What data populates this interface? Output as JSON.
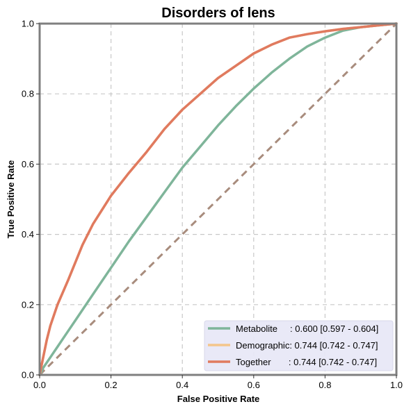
{
  "chart_data": {
    "type": "line",
    "title": "Disorders of lens",
    "xlabel": "False Positive Rate",
    "ylabel": "True Positive Rate",
    "xlim": [
      0,
      1
    ],
    "ylim": [
      0,
      1
    ],
    "xticks": [
      "0.0",
      "0.2",
      "0.4",
      "0.6",
      "0.8",
      "1.0"
    ],
    "yticks": [
      "0.0",
      "0.2",
      "0.4",
      "0.6",
      "0.8",
      "1.0"
    ],
    "grid": true,
    "legend_position": "lower-right",
    "series": [
      {
        "name": "Metabolite",
        "legend_label": "Metabolite     : 0.600 [0.597 - 0.604]",
        "color": "#7fb59a",
        "x": [
          0,
          0.01,
          0.03,
          0.05,
          0.08,
          0.1,
          0.15,
          0.2,
          0.25,
          0.3,
          0.35,
          0.4,
          0.45,
          0.5,
          0.55,
          0.6,
          0.65,
          0.7,
          0.75,
          0.8,
          0.85,
          0.9,
          0.95,
          1.0
        ],
        "y": [
          0,
          0.02,
          0.05,
          0.08,
          0.125,
          0.155,
          0.23,
          0.305,
          0.38,
          0.45,
          0.52,
          0.59,
          0.65,
          0.71,
          0.765,
          0.815,
          0.86,
          0.9,
          0.935,
          0.96,
          0.98,
          0.99,
          0.995,
          1.0
        ]
      },
      {
        "name": "Demographic",
        "legend_label": "Demographic: 0.744 [0.742 - 0.747]",
        "color": "#f4c58a",
        "x": [
          0,
          0.01,
          0.02,
          0.03,
          0.05,
          0.08,
          0.1,
          0.12,
          0.15,
          0.2,
          0.25,
          0.3,
          0.35,
          0.4,
          0.45,
          0.5,
          0.55,
          0.6,
          0.65,
          0.7,
          0.75,
          0.8,
          0.85,
          0.9,
          0.95,
          1.0
        ],
        "y": [
          0,
          0.05,
          0.1,
          0.14,
          0.2,
          0.27,
          0.32,
          0.37,
          0.43,
          0.51,
          0.575,
          0.635,
          0.7,
          0.755,
          0.8,
          0.845,
          0.88,
          0.915,
          0.94,
          0.96,
          0.97,
          0.978,
          0.985,
          0.99,
          0.995,
          1.0
        ]
      },
      {
        "name": "Together",
        "legend_label": "Together       : 0.744 [0.742 - 0.747]",
        "color": "#e07a5f",
        "x": [
          0,
          0.01,
          0.02,
          0.03,
          0.05,
          0.08,
          0.1,
          0.12,
          0.15,
          0.2,
          0.25,
          0.3,
          0.35,
          0.4,
          0.45,
          0.5,
          0.55,
          0.6,
          0.65,
          0.7,
          0.75,
          0.8,
          0.85,
          0.9,
          0.95,
          1.0
        ],
        "y": [
          0,
          0.05,
          0.1,
          0.14,
          0.2,
          0.27,
          0.32,
          0.37,
          0.43,
          0.51,
          0.575,
          0.635,
          0.7,
          0.755,
          0.8,
          0.845,
          0.88,
          0.915,
          0.94,
          0.96,
          0.97,
          0.978,
          0.985,
          0.99,
          0.995,
          1.0
        ]
      }
    ],
    "reference_line": {
      "x": [
        0,
        1
      ],
      "y": [
        0,
        1
      ],
      "color": "#a88c7d",
      "style": "dashed"
    }
  }
}
